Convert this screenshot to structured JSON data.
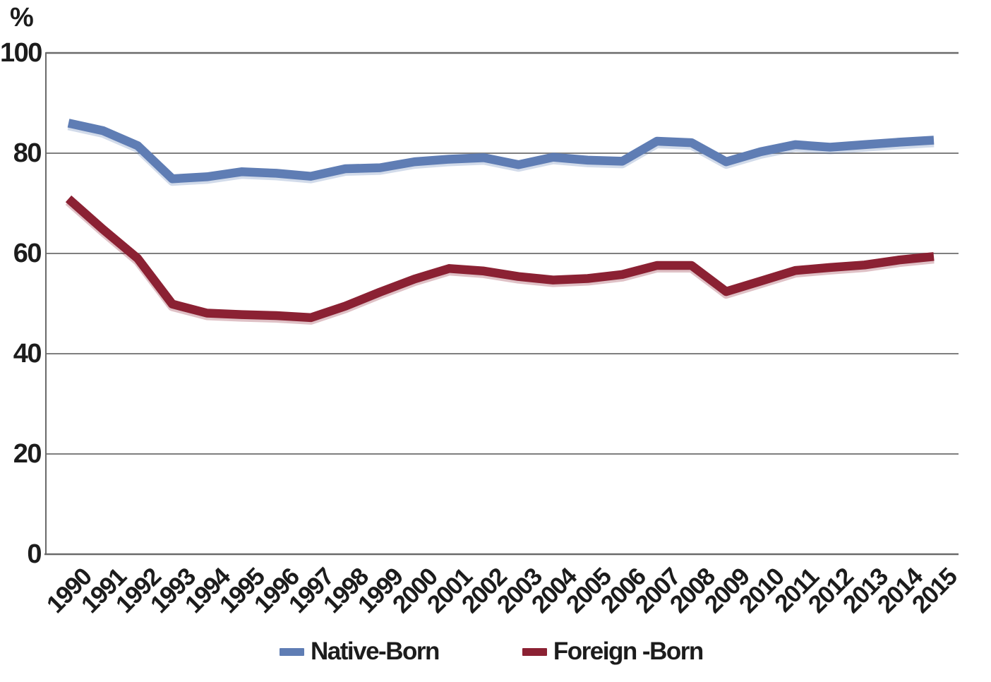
{
  "chart_data": {
    "type": "line",
    "title": "",
    "ylabel": "%",
    "xlabel": "",
    "ylim": [
      0,
      100
    ],
    "yticks": [
      0,
      20,
      40,
      60,
      80,
      100
    ],
    "grid": "horizontal",
    "legend_position": "bottom",
    "x": [
      "1990",
      "1991",
      "1992",
      "1993",
      "1994",
      "1995",
      "1996",
      "1997",
      "1998",
      "1999",
      "2000",
      "2001",
      "2002",
      "2003",
      "2004",
      "2005",
      "2006",
      "2007",
      "2008",
      "2009",
      "2010",
      "2011",
      "2012",
      "2013",
      "2014",
      "2015"
    ],
    "series": [
      {
        "name": "Native-Born",
        "color": "#5f7db4",
        "values": [
          86.0,
          84.5,
          81.5,
          74.9,
          75.3,
          76.3,
          76.0,
          75.4,
          76.9,
          77.1,
          78.3,
          78.8,
          79.1,
          77.7,
          79.2,
          78.6,
          78.4,
          82.4,
          82.1,
          78.3,
          80.3,
          81.7,
          81.2,
          81.7,
          82.2,
          82.6
        ]
      },
      {
        "name": "Foreign -Born",
        "color": "#8b2133",
        "values": [
          70.9,
          64.8,
          59.0,
          49.9,
          48.1,
          47.8,
          47.6,
          47.2,
          49.5,
          52.3,
          54.9,
          57.0,
          56.5,
          55.4,
          54.7,
          55.0,
          55.8,
          57.6,
          57.6,
          52.4,
          54.5,
          56.6,
          57.2,
          57.7,
          58.7,
          59.4
        ]
      }
    ]
  },
  "colors": {
    "gridline": "#7f7f7f",
    "axis": "#6a6a6a",
    "text": "#1c1c1c",
    "background": "#ffffff"
  }
}
